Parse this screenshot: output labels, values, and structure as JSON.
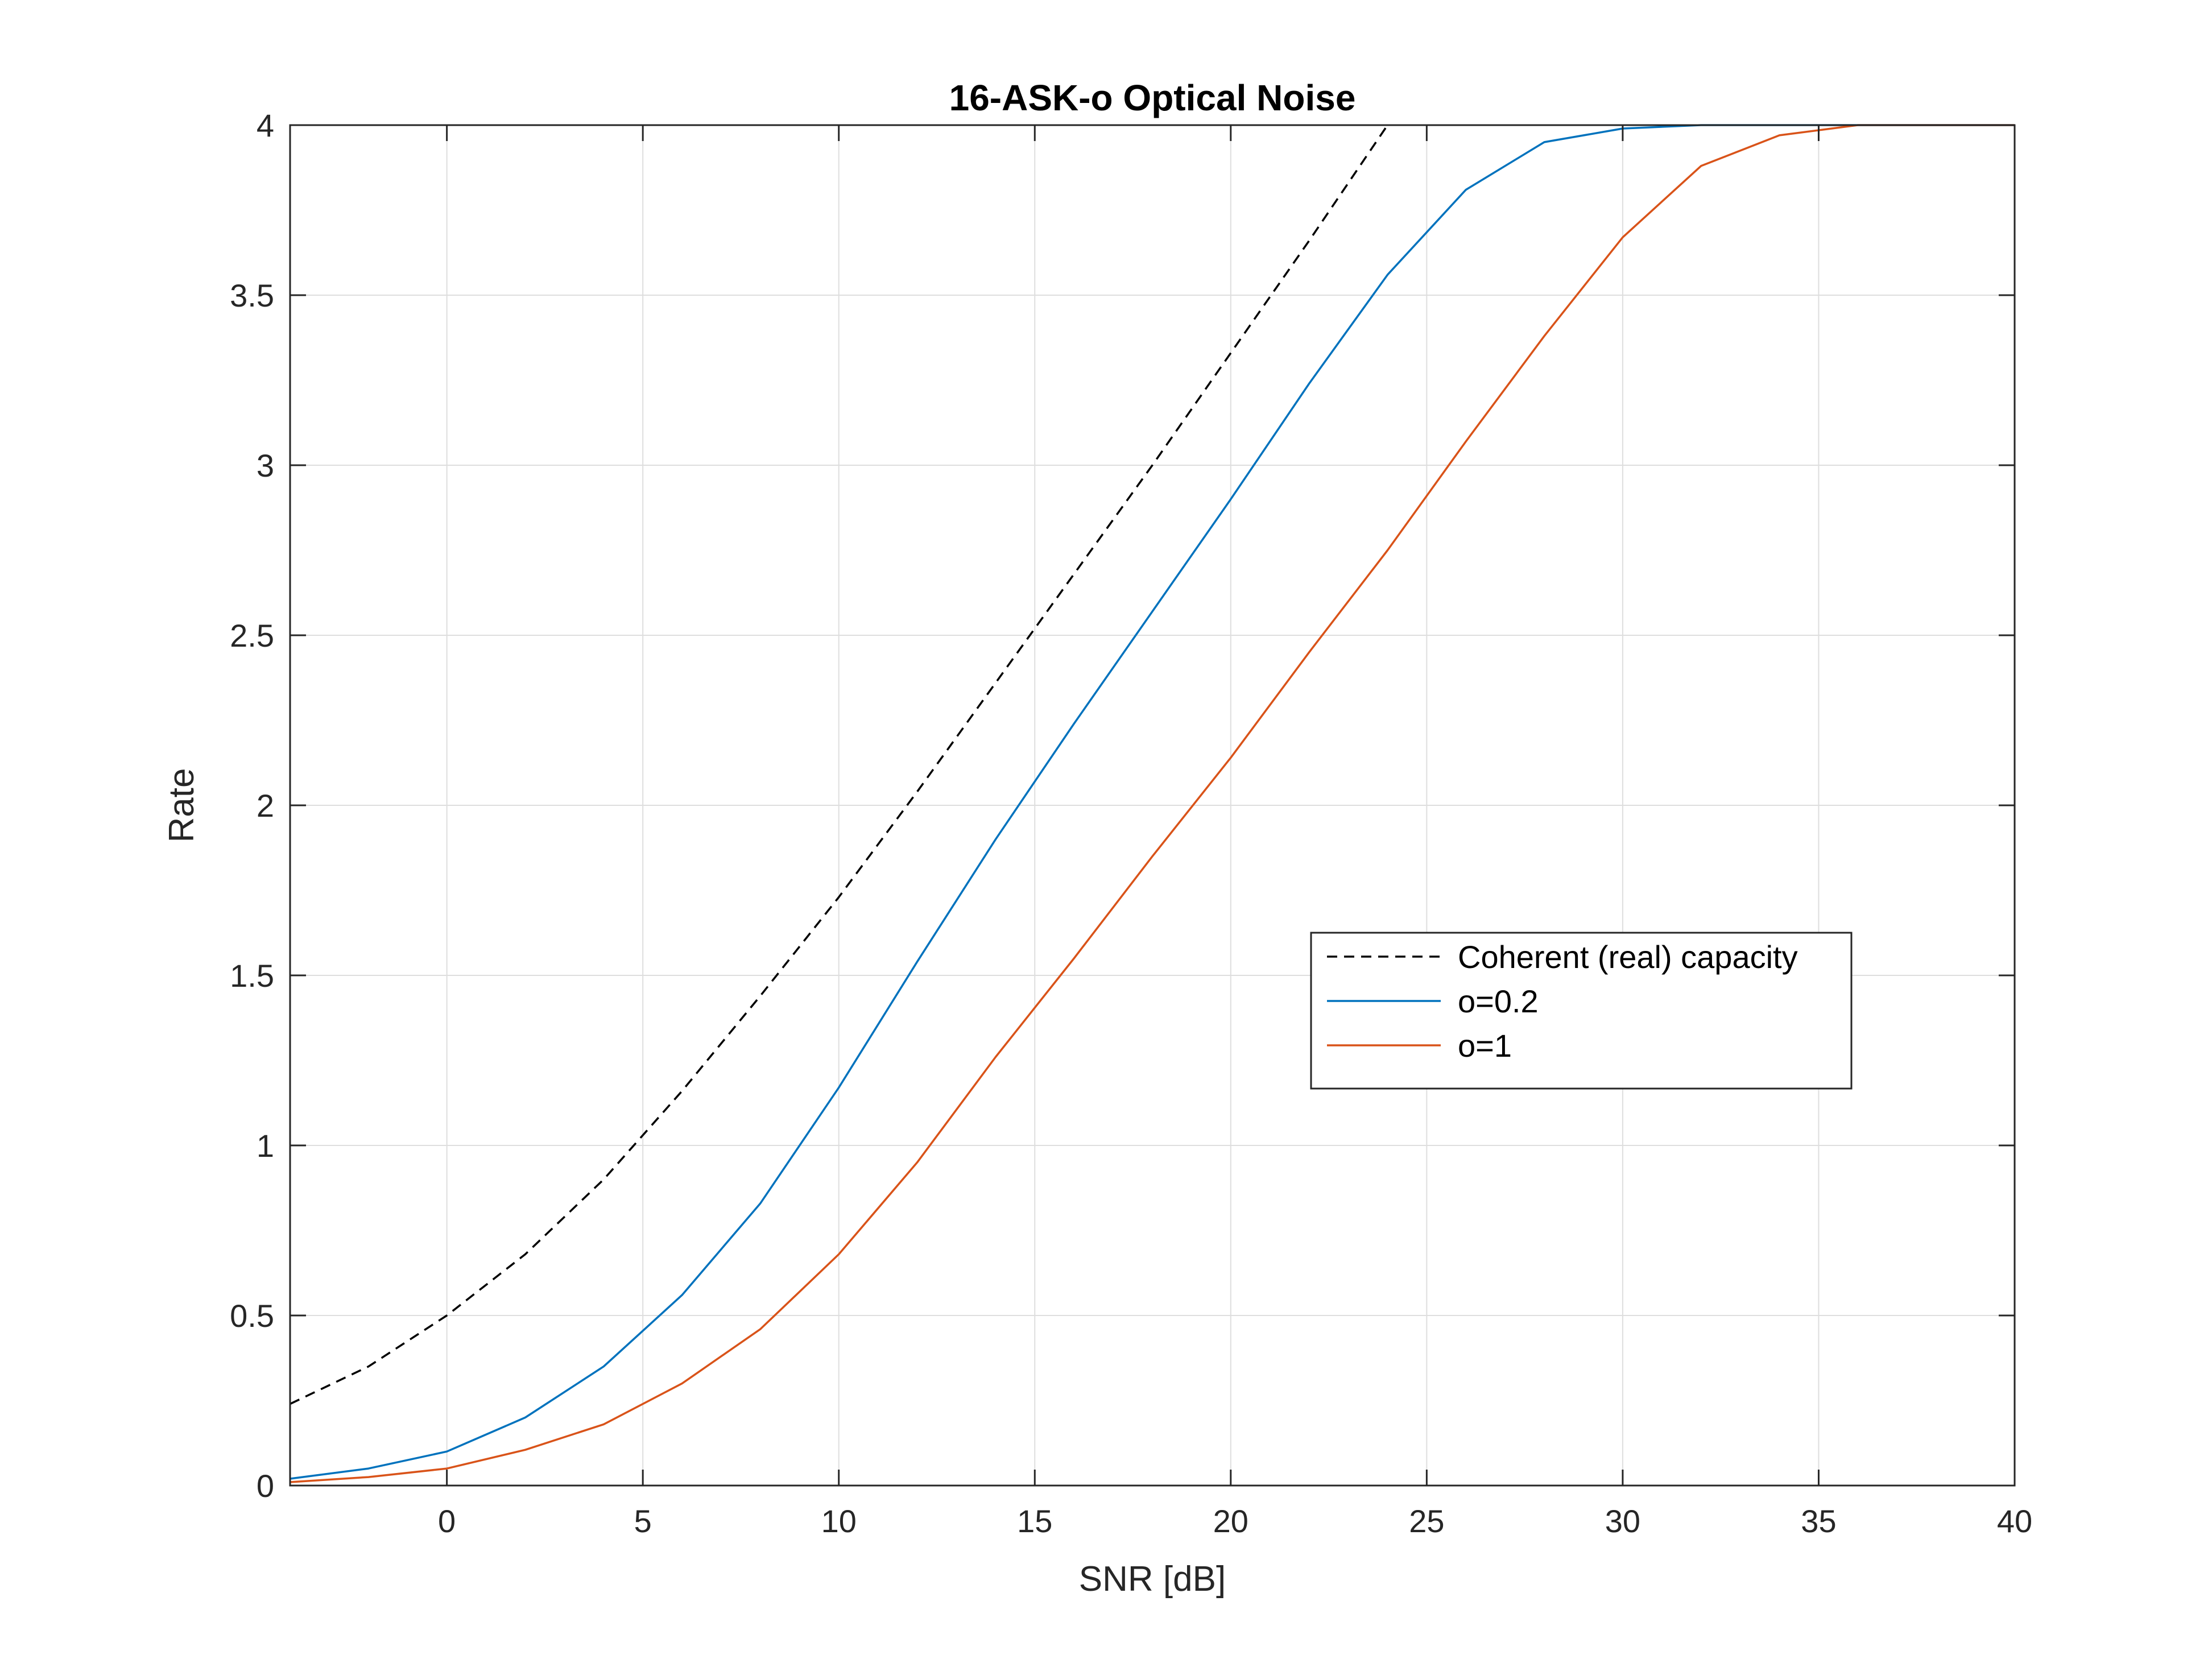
{
  "chart_data": {
    "type": "line",
    "title": "16-ASK-o Optical Noise",
    "xlabel": "SNR [dB]",
    "ylabel": "Rate",
    "xlim": [
      -4,
      40
    ],
    "ylim": [
      0,
      4
    ],
    "xticks": [
      0,
      5,
      10,
      15,
      20,
      25,
      30,
      35,
      40
    ],
    "yticks": [
      0,
      0.5,
      1,
      1.5,
      2,
      2.5,
      3,
      3.5,
      4
    ],
    "xtick_labels": [
      "0",
      "5",
      "10",
      "15",
      "20",
      "25",
      "30",
      "35",
      "40"
    ],
    "ytick_labels": [
      "0",
      "0.5",
      "1",
      "1.5",
      "2",
      "2.5",
      "3",
      "3.5",
      "4"
    ],
    "grid": true,
    "legend_position": "center-right",
    "series": [
      {
        "name": "Coherent (real) capacity",
        "color": "#000000",
        "dash": "dashed",
        "x": [
          -4,
          -2,
          0,
          2,
          4,
          6,
          8,
          10,
          12,
          14,
          16,
          18,
          20,
          22,
          24
        ],
        "y": [
          0.24,
          0.35,
          0.5,
          0.68,
          0.9,
          1.16,
          1.44,
          1.73,
          2.04,
          2.36,
          2.68,
          3.0,
          3.33,
          3.66,
          4.0
        ]
      },
      {
        "name": "o=0.2",
        "color": "#0072BD",
        "dash": "solid",
        "x": [
          -4,
          -2,
          0,
          2,
          4,
          6,
          8,
          10,
          12,
          14,
          16,
          18,
          20,
          22,
          24,
          26,
          28,
          30,
          32,
          34,
          36,
          38,
          40
        ],
        "y": [
          0.02,
          0.05,
          0.1,
          0.2,
          0.35,
          0.56,
          0.83,
          1.17,
          1.54,
          1.9,
          2.24,
          2.57,
          2.9,
          3.24,
          3.56,
          3.81,
          3.95,
          3.99,
          4.0,
          4.0,
          4.0,
          4.0,
          4.0
        ]
      },
      {
        "name": "o=1",
        "color": "#D95319",
        "dash": "solid",
        "x": [
          -4,
          -2,
          0,
          2,
          4,
          6,
          8,
          10,
          12,
          14,
          16,
          18,
          20,
          22,
          24,
          26,
          28,
          30,
          32,
          34,
          36,
          38,
          40
        ],
        "y": [
          0.01,
          0.025,
          0.05,
          0.105,
          0.18,
          0.3,
          0.46,
          0.68,
          0.95,
          1.26,
          1.55,
          1.85,
          2.14,
          2.45,
          2.75,
          3.07,
          3.38,
          3.67,
          3.88,
          3.97,
          4.0,
          4.0,
          4.0
        ]
      }
    ]
  }
}
